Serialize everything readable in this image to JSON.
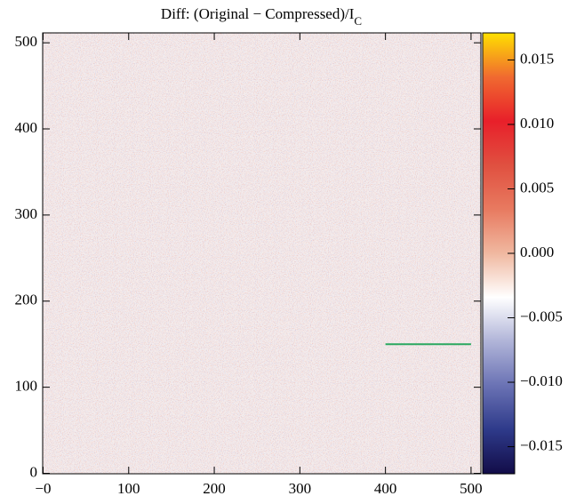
{
  "chart_data": {
    "type": "heatmap",
    "title": "Diff: (Original − Compressed)/I",
    "title_subscript": "C",
    "xlim": [
      -0.5,
      511.5
    ],
    "ylim": [
      -0.5,
      511.5
    ],
    "xticks": [
      {
        "value": 0,
        "label": "−0"
      },
      100,
      200,
      300,
      400,
      500
    ],
    "yticks": [
      0,
      100,
      200,
      300,
      400,
      500
    ],
    "clim": [
      -0.0171,
      0.0171
    ],
    "cticks": [
      {
        "value": -0.015,
        "label": "−0.015"
      },
      {
        "value": -0.01,
        "label": "−0.010"
      },
      {
        "value": -0.005,
        "label": "−0.005"
      },
      {
        "value": 0,
        "label": "0.000"
      },
      {
        "value": 0.005,
        "label": "0.005"
      },
      {
        "value": 0.01,
        "label": "0.010"
      },
      {
        "value": 0.015,
        "label": "0.015"
      }
    ],
    "colormap": [
      "#120c48",
      "#2e3a8a",
      "#6a72b4",
      "#b0b4d8",
      "#ffffff",
      "#f0b8a0",
      "#e87a60",
      "#e05040",
      "#e8202a",
      "#f06a30",
      "#ffe000"
    ],
    "annotation_line": {
      "x": [
        400,
        500
      ],
      "y": [
        150,
        150
      ],
      "color": "#2aa860"
    }
  }
}
